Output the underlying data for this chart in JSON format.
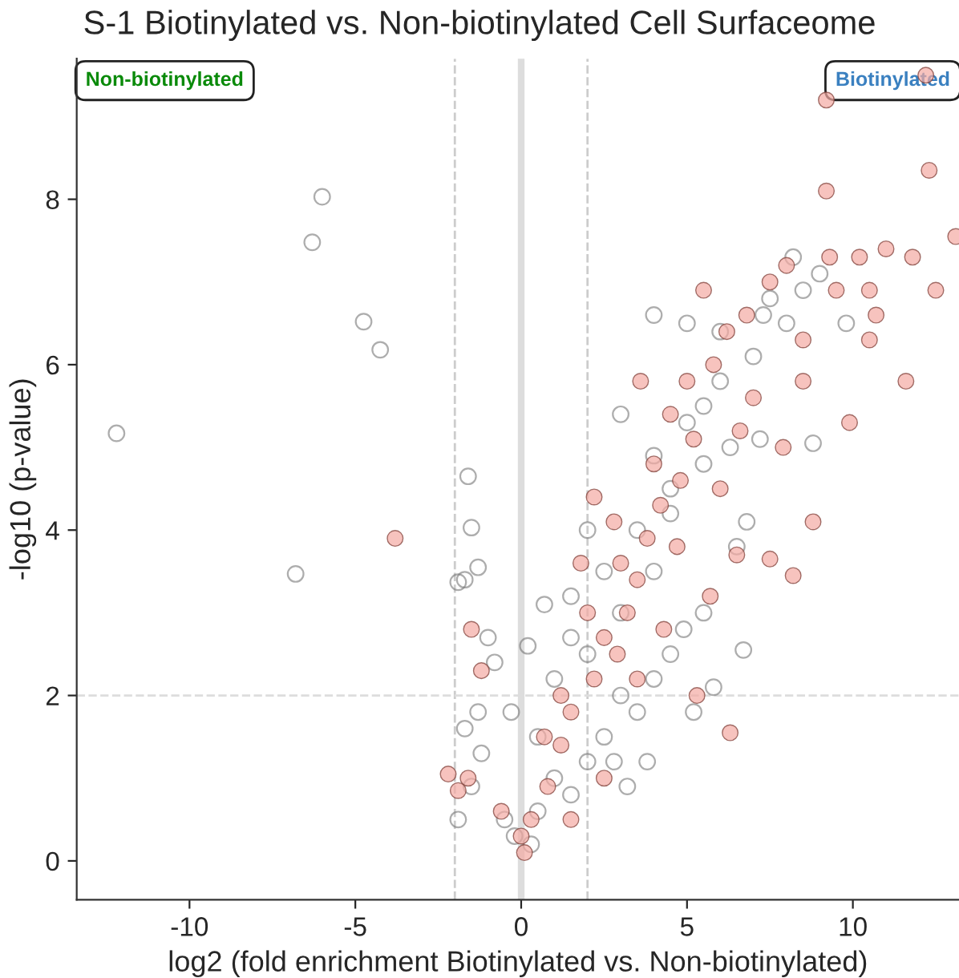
{
  "chart_data": {
    "type": "scatter",
    "title": "S-1 Biotinylated vs. Non-biotinylated Cell Surfaceome",
    "xlabel": "log2 (fold enrichment Biotinylated vs. Non-biotinylated)",
    "ylabel": "-log10 (p-value)",
    "annotations": [
      "Non-biotinylated",
      "Biotinylated"
    ],
    "xlim": [
      -13.4,
      13.2
    ],
    "ylim": [
      -0.47,
      9.7
    ],
    "xticks": [
      -10,
      -5,
      0,
      5,
      10
    ],
    "yticks": [
      0,
      2,
      4,
      6,
      8
    ],
    "grid": false,
    "legend": false,
    "marker": "circle",
    "ref_lines": [
      {
        "axis": "x",
        "value": 0,
        "color": "#dddddd",
        "line_style": "solid"
      },
      {
        "axis": "x",
        "value": -2,
        "color": "#cccccc",
        "line_style": "dashed"
      },
      {
        "axis": "x",
        "value": 2,
        "color": "#cccccc",
        "line_style": "dashed"
      },
      {
        "axis": "y",
        "value": 2,
        "color": "#dddddd",
        "line_style": "dashed"
      }
    ],
    "series": [
      {
        "color": "#777777",
        "x": [
          -12.2,
          -6.0,
          -6.3,
          -4.75,
          -4.25,
          -6.8,
          -1.6,
          -1.5,
          -1.9,
          -1.7,
          -1.3,
          -1.0,
          -0.8,
          -1.3,
          -1.7,
          -1.2,
          -1.5,
          -1.9,
          -0.5,
          -0.2,
          0.3,
          0.5,
          1,
          1.5,
          2,
          2.5,
          3,
          3.5,
          4.0,
          4.5,
          5.2,
          5.8,
          6.7,
          4.0,
          4.5,
          5,
          5.5,
          6,
          7,
          8,
          8.5,
          9,
          7.5,
          8.8,
          6,
          5,
          3.0,
          2.5,
          1.5,
          2,
          1,
          0.5,
          3.5,
          4,
          4.5,
          3.0,
          5.5,
          6.5,
          4,
          2,
          1.5,
          3.2,
          3.8,
          0.7,
          5.5,
          6.8,
          7.2,
          6.3,
          7.3,
          8.2,
          9.8,
          4.9,
          2.8,
          -0.3,
          0.2
        ],
        "values": [
          5.17,
          8.03,
          7.48,
          6.52,
          6.18,
          3.47,
          4.65,
          4.03,
          3.37,
          3.4,
          3.55,
          2.7,
          2.4,
          1.8,
          1.6,
          1.3,
          0.9,
          0.5,
          0.5,
          0.3,
          0.2,
          0.6,
          1.0,
          0.8,
          1.2,
          1.5,
          2,
          1.8,
          2.2,
          2.5,
          1.8,
          2.1,
          2.55,
          4.9,
          4.5,
          5.3,
          5.5,
          5.8,
          6.1,
          6.5,
          6.9,
          7.1,
          6.8,
          5.05,
          6.4,
          6.5,
          3.0,
          3.5,
          3.2,
          2.5,
          2.2,
          1.5,
          4.0,
          3.5,
          4.2,
          5.4,
          4.8,
          3.8,
          6.6,
          4.0,
          2.7,
          0.9,
          1.2,
          3.1,
          3.0,
          4.1,
          5.1,
          5.0,
          6.6,
          7.3,
          6.5,
          2.8,
          1.2,
          1.8,
          2.6
        ]
      },
      {
        "color": "#f4aaa2",
        "x": [
          12.2,
          9.2,
          12.3,
          9.2,
          13.1,
          11.8,
          10.2,
          12.5,
          10.5,
          11.6,
          9.9,
          8.8,
          7.5,
          8.2,
          6.5,
          5.3,
          6.3,
          -3.8,
          -1.5,
          -1.2,
          -1.6,
          -2.2,
          -1.9,
          -0.6,
          0.1,
          0,
          0.3,
          0.8,
          1.2,
          1.5,
          2.2,
          2.5,
          2.9,
          3.2,
          3.0,
          3.5,
          3.8,
          2.8,
          4.2,
          4.0,
          4.8,
          5.2,
          4.5,
          5.0,
          5.8,
          6.2,
          6.8,
          5.5,
          7.5,
          8.0,
          8.5,
          9.5,
          10.5,
          11.0,
          7,
          6.6,
          7.9,
          2.0,
          1.2,
          0.7,
          3.5,
          4.3,
          3.6,
          2.2,
          1.8,
          5.7,
          4.7,
          6.0,
          8.5,
          9.3,
          10.7,
          1.5,
          2.5
        ],
        "values": [
          9.5,
          9.2,
          8.35,
          8.1,
          7.55,
          7.3,
          7.3,
          6.9,
          6.3,
          5.8,
          5.3,
          4.1,
          3.65,
          3.45,
          3.7,
          2.0,
          1.55,
          3.9,
          2.8,
          2.3,
          1.0,
          1.05,
          0.85,
          0.6,
          0.1,
          0.3,
          0.5,
          0.9,
          1.4,
          1.8,
          2.2,
          2.7,
          2.5,
          3.0,
          3.6,
          3.4,
          3.9,
          4.1,
          4.3,
          4.8,
          4.6,
          5.1,
          5.4,
          5.8,
          6.0,
          6.4,
          6.6,
          6.9,
          7.0,
          7.2,
          6.3,
          6.9,
          6.9,
          7.4,
          5.6,
          5.2,
          5.0,
          3.0,
          2.0,
          1.5,
          2.2,
          2.8,
          5.8,
          4.4,
          3.6,
          3.2,
          3.8,
          4.5,
          5.8,
          7.3,
          6.6,
          0.5,
          1.0
        ]
      }
    ]
  }
}
